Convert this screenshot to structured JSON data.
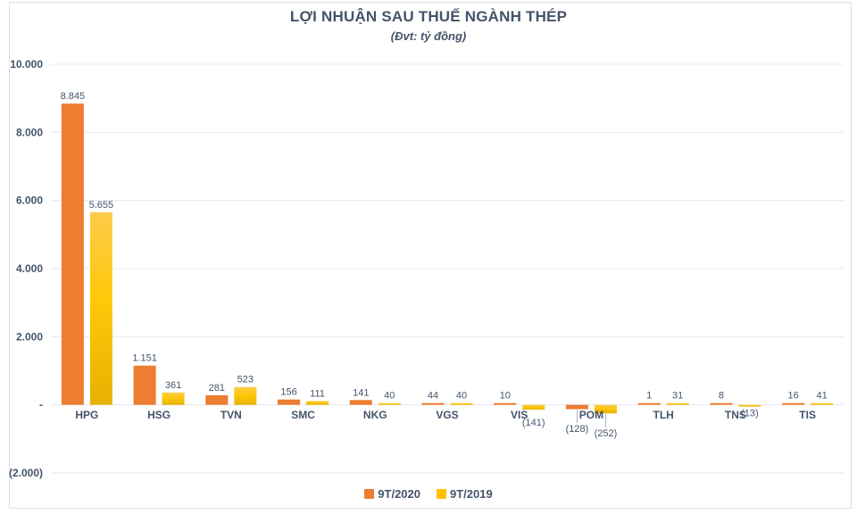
{
  "chart_data": {
    "type": "bar",
    "title": "LỢI NHUẬN SAU THUẾ NGÀNH THÉP",
    "subtitle": "(Đvt: tỷ đồng)",
    "categories": [
      "HPG",
      "HSG",
      "TVN",
      "SMC",
      "NKG",
      "VGS",
      "VIS",
      "POM",
      "TLH",
      "TNS",
      "TIS"
    ],
    "series": [
      {
        "name": "9T/2020",
        "color": "#ED7D31",
        "values": [
          8845,
          1151,
          281,
          156,
          141,
          44,
          10,
          -128,
          1,
          8,
          16
        ],
        "value_labels": [
          "8.845",
          "1.151",
          "281",
          "156",
          "141",
          "44",
          "10",
          "(128)",
          "1",
          "8",
          "16"
        ]
      },
      {
        "name": "9T/2019",
        "color": "#FFC000",
        "gradient": [
          "#FCCB4A",
          "#FFC80A",
          "#E6B100"
        ],
        "values": [
          5655,
          361,
          523,
          111,
          40,
          40,
          -141,
          -252,
          31,
          -13,
          41
        ],
        "value_labels": [
          "5.655",
          "361",
          "523",
          "111",
          "40",
          "40",
          "(141)",
          "(252)",
          "31",
          "(13)",
          "41"
        ]
      }
    ],
    "ylim": [
      -2000,
      10000
    ],
    "ytick_step": 2000,
    "ytick_labels": [
      "(2.000)",
      "-",
      "2.000",
      "4.000",
      "6.000",
      "8.000",
      "10.000"
    ],
    "grid": true,
    "legend_position": "bottom"
  },
  "colors": {
    "text": "#44546A",
    "gridline": "#E6E9EF",
    "frame_border": "#D9DFEA",
    "leader_line": "#A9B1C0",
    "background": "#FFFFFF"
  }
}
